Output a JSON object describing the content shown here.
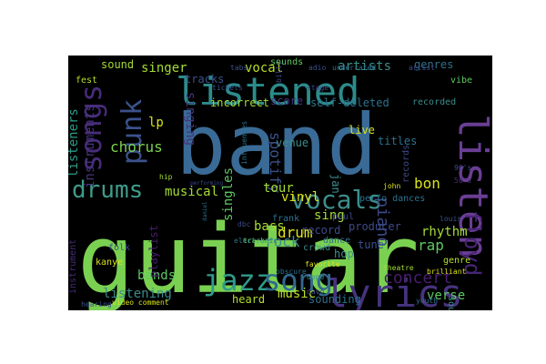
{
  "wordcloud": {
    "background": "#000000",
    "palette": [
      "#440154",
      "#472c7a",
      "#3b518b",
      "#2c718e",
      "#21908d",
      "#27ad81",
      "#5cc863",
      "#aadc32",
      "#fde725"
    ],
    "words": [
      {
        "text": "guitar",
        "color": "#7ad151"
      },
      {
        "text": "band",
        "color": "#3a6b96"
      },
      {
        "text": "listened",
        "color": "#2c8c8c"
      },
      {
        "text": "listen",
        "color": "#6a3e94"
      },
      {
        "text": "lyrics",
        "color": "#46337e"
      },
      {
        "text": "jazz",
        "color": "#2f9b8a"
      },
      {
        "text": "song",
        "color": "#31688e"
      },
      {
        "text": "songs",
        "color": "#472c7a"
      },
      {
        "text": "punk",
        "color": "#3b528b"
      },
      {
        "text": "drums",
        "color": "#3e9b8a"
      },
      {
        "text": "vocals",
        "color": "#3e8f8c"
      },
      {
        "text": "floyd",
        "color": "#482576"
      },
      {
        "text": "spotify",
        "color": "#3b528b"
      },
      {
        "text": "listeners",
        "color": "#2e9c8b"
      },
      {
        "text": "instruments",
        "color": "#46337e"
      },
      {
        "text": "chorus",
        "color": "#7ad151"
      },
      {
        "text": "singer",
        "color": "#a5db36"
      },
      {
        "text": "singing",
        "color": "#463480"
      },
      {
        "text": "artists",
        "color": "#3b8c8c"
      },
      {
        "text": "genres",
        "color": "#2c728e"
      },
      {
        "text": "vocal",
        "color": "#b5de2b"
      },
      {
        "text": "score",
        "color": "#46337e"
      },
      {
        "text": "self-deleted",
        "color": "#2c728e"
      },
      {
        "text": "incorrect",
        "color": "#a5db36"
      },
      {
        "text": "musical",
        "color": "#a5db36"
      },
      {
        "text": "tour",
        "color": "#a5db36"
      },
      {
        "text": "bon",
        "color": "#d8e219"
      },
      {
        "text": "drum",
        "color": "#e0e21b"
      },
      {
        "text": "rap",
        "color": "#5ec962"
      },
      {
        "text": "rhythm",
        "color": "#a5db36"
      },
      {
        "text": "piano",
        "color": "#3e4a89"
      },
      {
        "text": "concert",
        "color": "#481d6f"
      },
      {
        "text": "verse",
        "color": "#5ec962"
      },
      {
        "text": "sounding",
        "color": "#2c728e"
      },
      {
        "text": "music",
        "color": "#bddf26"
      },
      {
        "text": "bands",
        "color": "#5ec962"
      },
      {
        "text": "listening",
        "color": "#3b8c8c"
      },
      {
        "text": "rock",
        "color": "#3b8c8c"
      },
      {
        "text": "bass",
        "color": "#a5db36"
      },
      {
        "text": "sing",
        "color": "#a5db36"
      },
      {
        "text": "singles",
        "color": "#5ec962"
      },
      {
        "text": "playlist",
        "color": "#481d6f"
      },
      {
        "text": "heard",
        "color": "#b5de2b"
      },
      {
        "text": "venue",
        "color": "#3b8c8c"
      },
      {
        "text": "tracks",
        "color": "#3b528b"
      },
      {
        "text": "vinyl",
        "color": "#d8e219"
      },
      {
        "text": "live",
        "color": "#d8e219"
      },
      {
        "text": "titles",
        "color": "#2c728e"
      },
      {
        "text": "records",
        "color": "#3e4a89"
      },
      {
        "text": "lp",
        "color": "#d8e219"
      },
      {
        "text": "jan",
        "color": "#3e8f8c"
      },
      {
        "text": "tune",
        "color": "#3b528b"
      },
      {
        "text": "sounds",
        "color": "#5ec962"
      },
      {
        "text": "sound",
        "color": "#a5db36"
      },
      {
        "text": "hop",
        "color": "#3e8f8c"
      },
      {
        "text": "crowd",
        "color": "#3b8c8c"
      },
      {
        "text": "record",
        "color": "#3e4a89"
      },
      {
        "text": "producer",
        "color": "#3e4a89"
      },
      {
        "text": "perfo dances",
        "color": "#2c728e"
      },
      {
        "text": "fest",
        "color": "#b5de2b"
      },
      {
        "text": "recorded",
        "color": "#3b8c8c"
      },
      {
        "text": "frank",
        "color": "#2c728e"
      },
      {
        "text": "genre",
        "color": "#b5de2b"
      },
      {
        "text": "kanye",
        "color": "#d8e219"
      },
      {
        "text": "instrument",
        "color": "#472c7a"
      },
      {
        "text": "folk",
        "color": "#3b528b"
      },
      {
        "text": "paul",
        "color": "#3e4a89"
      },
      {
        "text": "dance",
        "color": "#2c728e"
      },
      {
        "text": "favorite",
        "color": "#d8e219"
      },
      {
        "text": "hearing",
        "color": "#3b528b"
      },
      {
        "text": "video comment",
        "color": "#d8e219"
      },
      {
        "text": "sounded",
        "color": "#3e8f8c"
      },
      {
        "text": "brilliant",
        "color": "#d8e219"
      },
      {
        "text": "underrated",
        "color": "#2c728e"
      },
      {
        "text": "adio",
        "color": "#3b528b"
      },
      {
        "text": "vibe",
        "color": "#5ec962"
      },
      {
        "text": "artist",
        "color": "#3e4a89"
      },
      {
        "text": "youth",
        "color": "#2c728e"
      },
      {
        "text": "louis",
        "color": "#3b528b"
      },
      {
        "text": "dope",
        "color": "#3e8f8c"
      },
      {
        "text": "stage",
        "color": "#3e4a89"
      },
      {
        "text": "john",
        "color": "#d8e219"
      },
      {
        "text": "tickets",
        "color": "#3b528b"
      },
      {
        "text": "theatre",
        "color": "#a5db36"
      },
      {
        "text": "influences",
        "color": "#2c728e"
      },
      {
        "text": "dbc",
        "color": "#3e4a89"
      },
      {
        "text": "electronic",
        "color": "#2c728e"
      },
      {
        "text": "davo",
        "color": "#3b528b"
      },
      {
        "text": "billy",
        "color": "#3e4a89"
      },
      {
        "text": "obscure",
        "color": "#2c728e"
      },
      {
        "text": "performing",
        "color": "#3e4a89"
      },
      {
        "text": "daniel",
        "color": "#2c728e"
      },
      {
        "text": "90's",
        "color": "#3e4a89"
      },
      {
        "text": "50's",
        "color": "#472c7a"
      },
      {
        "text": "hip",
        "color": "#a5db36"
      },
      {
        "text": "tracks",
        "color": "#5ec962"
      },
      {
        "text": "tabs",
        "color": "#3b528b"
      }
    ]
  }
}
